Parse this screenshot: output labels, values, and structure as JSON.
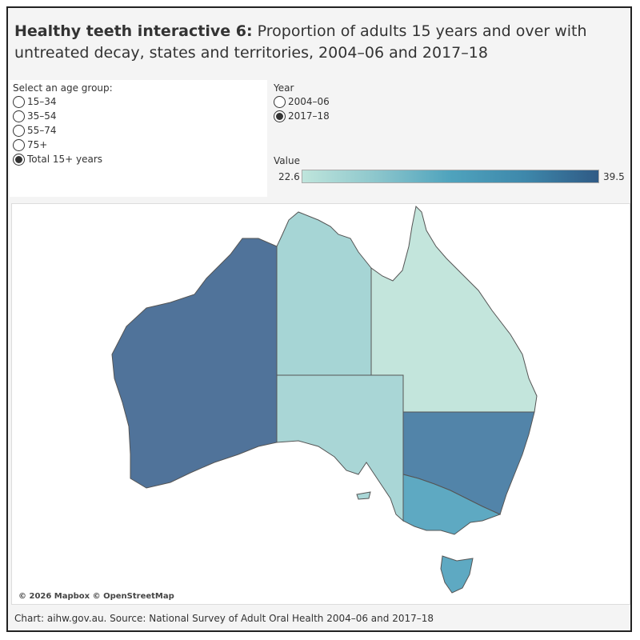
{
  "title": {
    "bold": "Healthy teeth interactive 6:",
    "rest": " Proportion of adults 15 years and over with untreated decay, states and territories, 2004–06 and 2017–18"
  },
  "age_filter": {
    "label": "Select an age group:",
    "options": [
      {
        "label": "15–34",
        "selected": false
      },
      {
        "label": "35–54",
        "selected": false
      },
      {
        "label": "55–74",
        "selected": false
      },
      {
        "label": "75+",
        "selected": false
      },
      {
        "label": "Total 15+ years",
        "selected": true
      }
    ]
  },
  "year_filter": {
    "label": "Year",
    "options": [
      {
        "label": "2004–06",
        "selected": false
      },
      {
        "label": "2017–18",
        "selected": true
      }
    ]
  },
  "legend": {
    "label": "Value",
    "min": "22.6",
    "max": "39.5",
    "color_min": "#bfe5dc",
    "color_max": "#2f5a85"
  },
  "map": {
    "attribution": "© 2026 Mapbox © OpenStreetMap",
    "state_colors": {
      "WA": "#50739a",
      "NT": "#a6d5d5",
      "SA": "#a9d6d6",
      "QLD": "#c3e5dc",
      "NSW": "#5284a9",
      "VIC": "#5ea9c2",
      "TAS": "#5ea9c2"
    }
  },
  "footer": "Chart: aihw.gov.au. Source: National Survey of Adult Oral Health 2004–06 and 2017–18"
}
